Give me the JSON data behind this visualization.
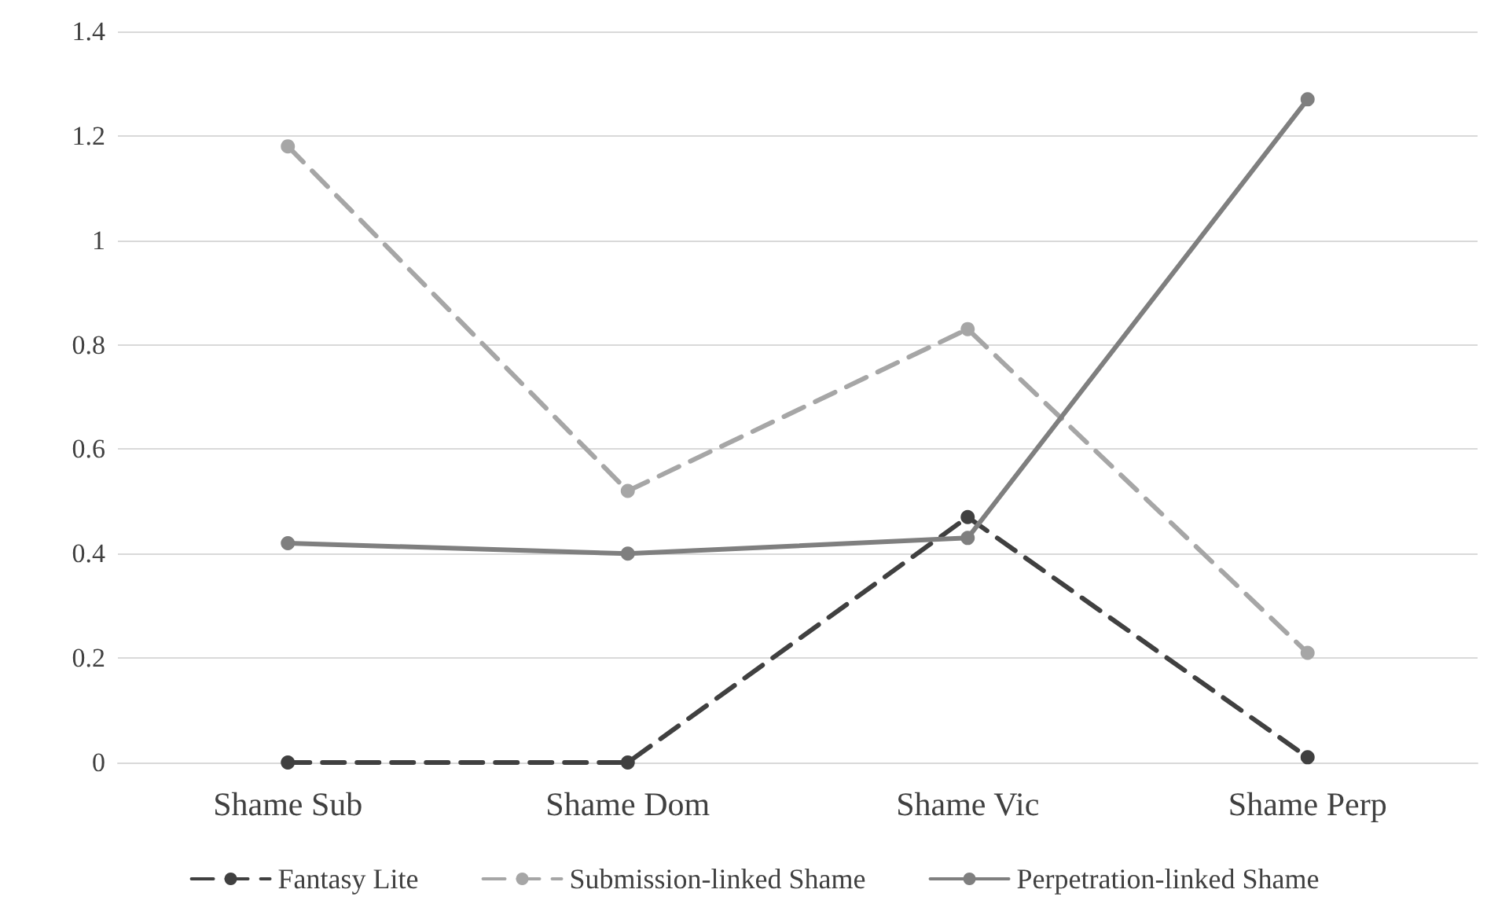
{
  "chart_data": {
    "type": "line",
    "categories": [
      "Shame Sub",
      "Shame Dom",
      "Shame Vic",
      "Shame Perp"
    ],
    "series": [
      {
        "name": "Fantasy Lite",
        "color": "#404040",
        "line_style": "dashed",
        "values": [
          0,
          0,
          0.47,
          0.01
        ]
      },
      {
        "name": "Submission-linked Shame",
        "color": "#a6a6a6",
        "line_style": "dashed",
        "values": [
          1.18,
          0.52,
          0.83,
          0.21
        ]
      },
      {
        "name": "Perpetration-linked Shame",
        "color": "#7f7f7f",
        "line_style": "solid",
        "values": [
          0.42,
          0.4,
          0.43,
          1.27
        ]
      }
    ],
    "ylim": [
      0,
      1.4
    ],
    "yticks": [
      0,
      0.2,
      0.4,
      0.6,
      0.8,
      1,
      1.2,
      1.4
    ],
    "grid": "y",
    "legend": "bottom",
    "marker": "circle"
  }
}
